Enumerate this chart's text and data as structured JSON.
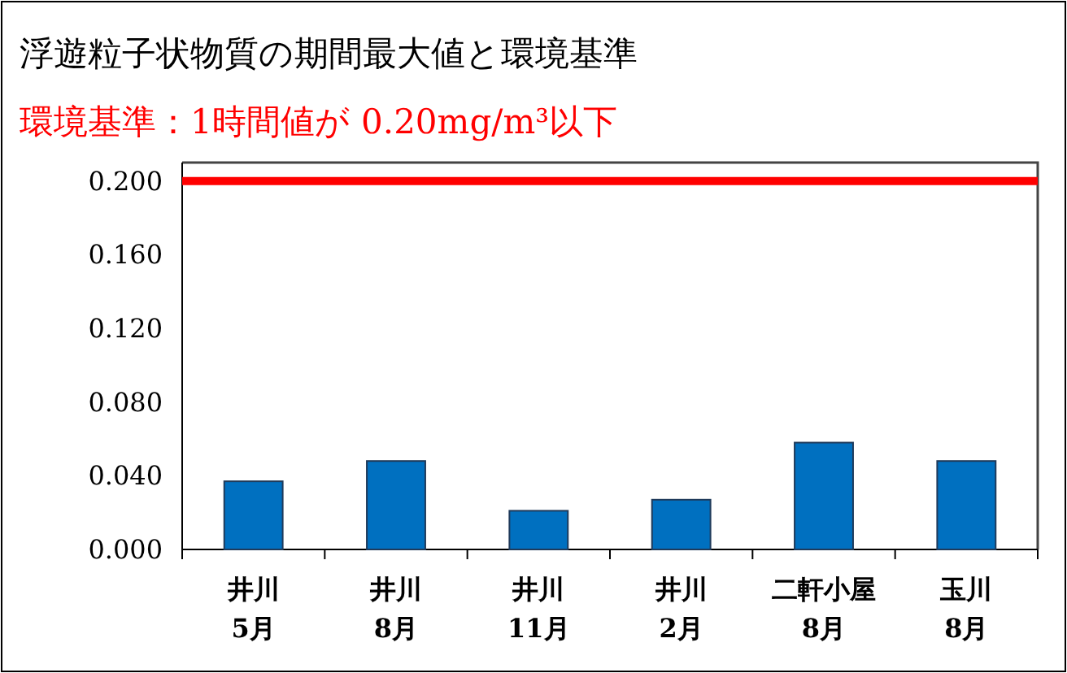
{
  "chart_data": {
    "type": "bar",
    "title": "浮遊粒子状物質の期間最大値と環境基準",
    "categories": [
      "井川\n5月",
      "井川\n8月",
      "井川\n11月",
      "井川\n2月",
      "二軒小屋\n8月",
      "玉川\n8月"
    ],
    "values": [
      0.037,
      0.048,
      0.021,
      0.027,
      0.058,
      0.048
    ],
    "color": "#0070c0",
    "ylim": [
      0,
      0.21
    ],
    "yticks": [
      {
        "value": 0,
        "label": "0.000"
      },
      {
        "value": 0.04,
        "label": "0.040"
      },
      {
        "value": 0.08,
        "label": "0.080"
      },
      {
        "value": 0.12,
        "label": "0.120"
      },
      {
        "value": 0.16,
        "label": "0.160"
      },
      {
        "value": 0.2,
        "label": "0.200"
      }
    ],
    "ref_lines": [
      {
        "axis": "y",
        "value": 0.2,
        "label": "環境基準：1時間値が 0.20mg/m³以下",
        "color": "#ff0000"
      }
    ],
    "grid": false
  }
}
